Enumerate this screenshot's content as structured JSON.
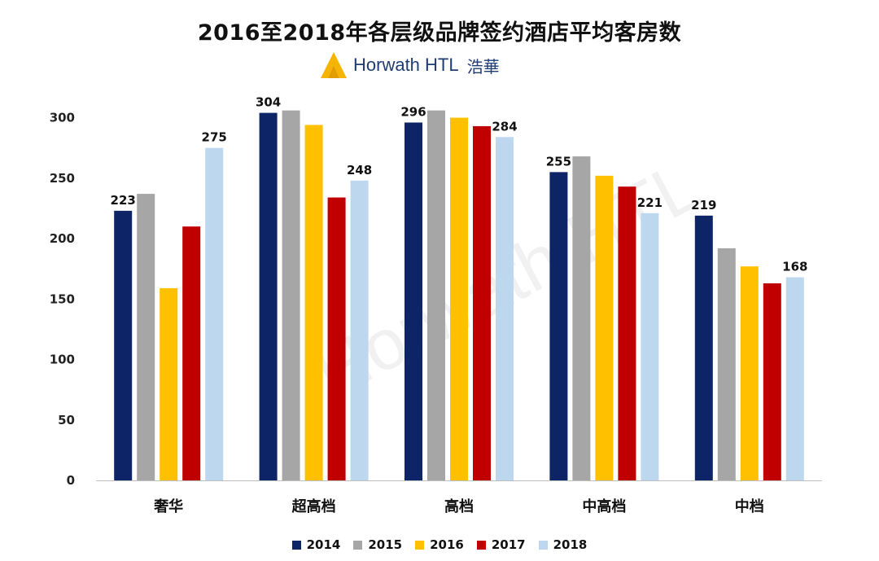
{
  "chart_data": {
    "type": "bar",
    "title": "2016至2018年各层级品牌签约酒店平均客房数",
    "categories": [
      "奢华",
      "超高档",
      "高档",
      "中高档",
      "中档"
    ],
    "yticks": [
      0,
      50,
      100,
      150,
      200,
      250,
      300
    ],
    "ylim": [
      0,
      330
    ],
    "grid": false,
    "legend_position": "bottom",
    "series": [
      {
        "name": "2014",
        "color": "#0d2566",
        "values": [
          223,
          304,
          296,
          255,
          219
        ],
        "labeled": true
      },
      {
        "name": "2015",
        "color": "#a6a6a6",
        "values": [
          237,
          306,
          306,
          268,
          192
        ],
        "labeled": false
      },
      {
        "name": "2016",
        "color": "#ffc000",
        "values": [
          159,
          294,
          300,
          252,
          177
        ],
        "labeled": false
      },
      {
        "name": "2017",
        "color": "#c00000",
        "values": [
          210,
          234,
          293,
          243,
          163
        ],
        "labeled": false
      },
      {
        "name": "2018",
        "color": "#bdd7ee",
        "values": [
          275,
          248,
          284,
          221,
          168
        ],
        "labeled": true
      }
    ]
  },
  "logo": {
    "brand": "Horwath HTL",
    "brand_cn": "浩華"
  },
  "watermark": "Horwath HTL"
}
